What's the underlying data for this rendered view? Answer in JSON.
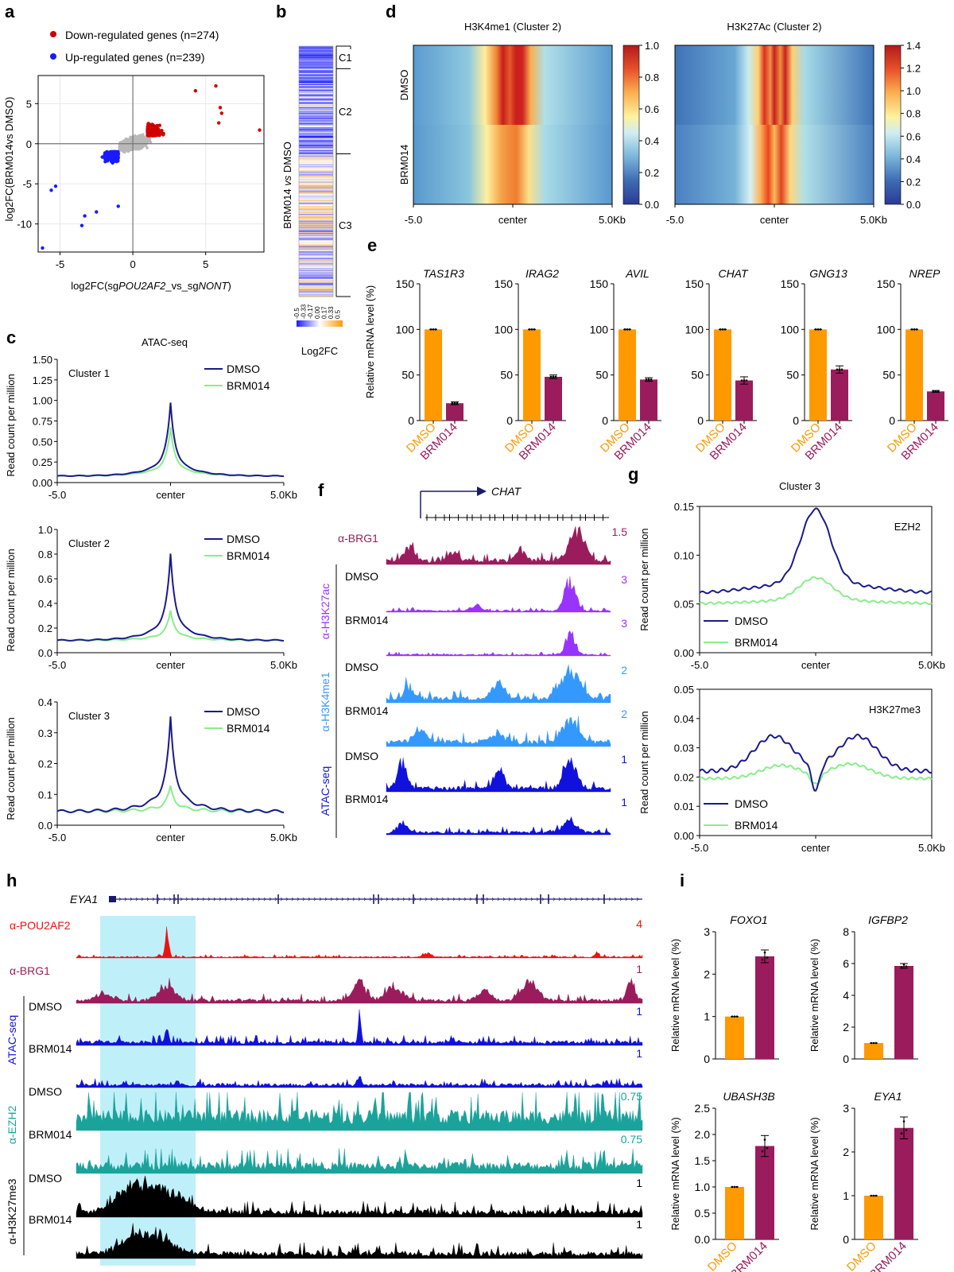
{
  "panel_letters": {
    "a": "a",
    "b": "b",
    "c": "c",
    "d": "d",
    "e": "e",
    "f": "f",
    "g": "g",
    "h": "h",
    "i": "i"
  },
  "colors": {
    "down": "#d10000",
    "up": "#1a1aff",
    "dmso_bar": "#ff9900",
    "brm_bar": "#9b1c5c",
    "dmso_line": "#1a1a8c",
    "brm_line": "#88ee88",
    "brg1": "#9b1c5c",
    "h3k27ac": "#9933ff",
    "h3k4me1": "#3399ff",
    "atac": "#1111dd",
    "pou": "#ee1111",
    "ezh2": "#1aa39b",
    "h3k27me3": "#000000",
    "highlight": "#bff0fa"
  },
  "chart_data": [
    {
      "id": "a",
      "type": "scatter",
      "legend": [
        "Down-regulated genes (n=274)",
        "Up-regulated genes (n=239)"
      ],
      "xlabel_pre": "log2FC(sg",
      "xlabel_i1": "POU2AF2",
      "xlabel_mid": "_vs_sg",
      "xlabel_i2": "NONT",
      "xlabel_post": ")",
      "ylabel": "log2FC(BRM014vs DMSO)",
      "xlim": [
        -6.5,
        9
      ],
      "ylim": [
        -13.5,
        8.5
      ],
      "xticks": [
        -5,
        0,
        5
      ],
      "yticks": [
        5,
        0,
        -5,
        -10
      ],
      "down_n": 274,
      "up_n": 239,
      "outliers_down": [
        [
          5.7,
          7.2
        ],
        [
          6.1,
          3.8
        ],
        [
          5.9,
          2.6
        ],
        [
          8.7,
          1.7
        ],
        [
          4.3,
          6.6
        ],
        [
          6.0,
          4.5
        ]
      ],
      "outliers_up": [
        [
          -6.2,
          -13.0
        ],
        [
          -3.3,
          -9.0
        ],
        [
          -3.5,
          -10.2
        ],
        [
          -1.0,
          -7.8
        ],
        [
          -5.3,
          -5.3
        ],
        [
          -5.6,
          -5.8
        ],
        [
          -2.5,
          -8.5
        ]
      ]
    },
    {
      "id": "b",
      "type": "heatmap",
      "ylabel_pre": "BRM014 ",
      "ylabel_italic": "vs",
      "ylabel_post": " DMSO",
      "clusters": [
        "C1",
        "C2",
        "C3"
      ],
      "cluster_fracs": [
        0.09,
        0.34,
        0.57
      ],
      "scale_ticks": [
        "-0.5",
        "-0.33",
        "-0.17",
        "0.00",
        "0.17",
        "0.33",
        "0.5"
      ],
      "scale_label": "Log2FC",
      "range": [
        -0.5,
        0.5
      ]
    },
    {
      "id": "c",
      "type": "line",
      "title": "ATAC-seq",
      "ylabel": "Read count per million",
      "xticks": [
        "-5.0",
        "center",
        "5.0Kb"
      ],
      "series_names": [
        "DMSO",
        "BRM014"
      ],
      "plots": [
        {
          "name": "Cluster 1",
          "ylim": [
            0,
            1.5
          ],
          "yticks": [
            "0.00",
            "0.25",
            "0.50",
            "0.75",
            "1.00",
            "1.25",
            "1.50"
          ],
          "base": 0.08,
          "peak_dmso": 0.97,
          "peak_brm": 0.67
        },
        {
          "name": "Cluster 2",
          "ylim": [
            0,
            1.0
          ],
          "yticks": [
            "0.0",
            "0.2",
            "0.4",
            "0.6",
            "0.8",
            "1.0"
          ],
          "base": 0.1,
          "peak_dmso": 0.8,
          "peak_brm": 0.34
        },
        {
          "name": "Cluster 3",
          "ylim": [
            0,
            0.4
          ],
          "yticks": [
            "0.0",
            "0.1",
            "0.2",
            "0.3",
            "0.4"
          ],
          "base": 0.045,
          "peak_dmso": 0.35,
          "peak_brm": 0.125
        }
      ]
    },
    {
      "id": "d",
      "type": "heatmap",
      "plots": [
        {
          "title": "H3K4me1 (Cluster 2)",
          "scale_ticks": [
            "1.0",
            "0.8",
            "0.6",
            "0.4",
            "0.2",
            "0.0"
          ],
          "rows": [
            "DMSO",
            "BRM014"
          ]
        },
        {
          "title": "H3K27Ac (Cluster 2)",
          "scale_ticks": [
            "1.4",
            "1.2",
            "1.0",
            "0.8",
            "0.6",
            "0.4",
            "0.2",
            "0.0"
          ],
          "rows": [
            "DMSO",
            "BRM014"
          ]
        }
      ],
      "xticks": [
        "-5.0",
        "center",
        "5.0Kb"
      ]
    },
    {
      "id": "e",
      "type": "bar",
      "ylabel": "Relative mRNA level (%)",
      "categories": [
        "DMSO",
        "BRM014"
      ],
      "ylim": [
        0,
        150
      ],
      "yticks": [
        "0",
        "50",
        "100",
        "150"
      ],
      "genes": [
        {
          "name": "TAS1R3",
          "values": [
            100,
            19
          ],
          "err": [
            0,
            1.5
          ]
        },
        {
          "name": "IRAG2",
          "values": [
            100,
            48
          ],
          "err": [
            0,
            2
          ]
        },
        {
          "name": "AVIL",
          "values": [
            100,
            45
          ],
          "err": [
            0,
            2
          ]
        },
        {
          "name": "CHAT",
          "values": [
            100,
            44
          ],
          "err": [
            0,
            4
          ]
        },
        {
          "name": "GNG13",
          "values": [
            100,
            56
          ],
          "err": [
            0,
            4
          ]
        },
        {
          "name": "NREP",
          "values": [
            100,
            32
          ],
          "err": [
            0,
            1
          ]
        }
      ]
    },
    {
      "id": "f",
      "type": "tracks",
      "gene": "CHAT",
      "tracks": [
        {
          "group": "",
          "label": "α-BRG1",
          "sample": "",
          "scale": "1.5",
          "color": "brg1"
        },
        {
          "group": "α-H3K27ac",
          "label": "",
          "sample": "DMSO",
          "scale": "3",
          "color": "h3k27ac"
        },
        {
          "group": "",
          "label": "",
          "sample": "BRM014",
          "scale": "3",
          "color": "h3k27ac"
        },
        {
          "group": "α-H3K4me1",
          "label": "",
          "sample": "DMSO",
          "scale": "2",
          "color": "h3k4me1"
        },
        {
          "group": "",
          "label": "",
          "sample": "BRM014",
          "scale": "2",
          "color": "h3k4me1"
        },
        {
          "group": "ATAC-seq",
          "label": "",
          "sample": "DMSO",
          "scale": "1",
          "color": "atac"
        },
        {
          "group": "",
          "label": "",
          "sample": "BRM014",
          "scale": "1",
          "color": "atac"
        }
      ]
    },
    {
      "id": "g",
      "type": "line",
      "title": "Cluster 3",
      "ylabel": "Read count per million",
      "xticks": [
        "-5.0",
        "center",
        "5.0Kb"
      ],
      "series_names": [
        "DMSO",
        "BRM014"
      ],
      "plots": [
        {
          "name": "EZH2",
          "ylim": [
            0,
            0.15
          ],
          "yticks": [
            "0.00",
            "0.05",
            "0.10",
            "0.15"
          ]
        },
        {
          "name": "H3K27me3",
          "ylim": [
            0,
            0.05
          ],
          "yticks": [
            "0.00",
            "0.01",
            "0.02",
            "0.03",
            "0.04",
            "0.05"
          ]
        }
      ]
    },
    {
      "id": "h",
      "type": "tracks",
      "gene": "EYA1",
      "tracks": [
        {
          "group": "",
          "label": "α-POU2AF2",
          "sample": "",
          "scale": "4",
          "color": "pou"
        },
        {
          "group": "",
          "label": "α-BRG1",
          "sample": "",
          "scale": "1",
          "color": "brg1"
        },
        {
          "group": "ATAC-seq",
          "label": "",
          "sample": "DMSO",
          "scale": "1",
          "color": "atac"
        },
        {
          "group": "",
          "label": "",
          "sample": "BRM014",
          "scale": "1",
          "color": "atac"
        },
        {
          "group": "α-EZH2",
          "label": "",
          "sample": "DMSO",
          "scale": "0.75",
          "color": "ezh2"
        },
        {
          "group": "",
          "label": "",
          "sample": "BRM014",
          "scale": "0.75",
          "color": "ezh2"
        },
        {
          "group": "α-H3K27me3",
          "label": "",
          "sample": "DMSO",
          "scale": "1",
          "color": "h3k27me3"
        },
        {
          "group": "",
          "label": "",
          "sample": "BRM014",
          "scale": "1",
          "color": "h3k27me3"
        }
      ]
    },
    {
      "id": "i",
      "type": "bar",
      "ylabel": "Relative mRNA level (%)",
      "categories": [
        "DMSO",
        "BRM014"
      ],
      "genes": [
        {
          "name": "FOXO1",
          "values": [
            1,
            2.42
          ],
          "err": [
            0,
            0.15
          ],
          "ylim": [
            0,
            3
          ],
          "yticks": [
            "0",
            "1",
            "2",
            "3"
          ]
        },
        {
          "name": "IGFBP2",
          "values": [
            1,
            5.85
          ],
          "err": [
            0,
            0.15
          ],
          "ylim": [
            0,
            8
          ],
          "yticks": [
            "0",
            "2",
            "4",
            "6",
            "8"
          ]
        },
        {
          "name": "UBASH3B",
          "values": [
            1,
            1.78
          ],
          "err": [
            0,
            0.2
          ],
          "ylim": [
            0,
            2.5
          ],
          "yticks": [
            "0.0",
            "0.5",
            "1.0",
            "1.5",
            "2.0",
            "2.5"
          ]
        },
        {
          "name": "EYA1",
          "values": [
            1,
            2.55
          ],
          "err": [
            0,
            0.25
          ],
          "ylim": [
            0,
            3
          ],
          "yticks": [
            "0",
            "1",
            "2",
            "3"
          ]
        }
      ]
    }
  ]
}
